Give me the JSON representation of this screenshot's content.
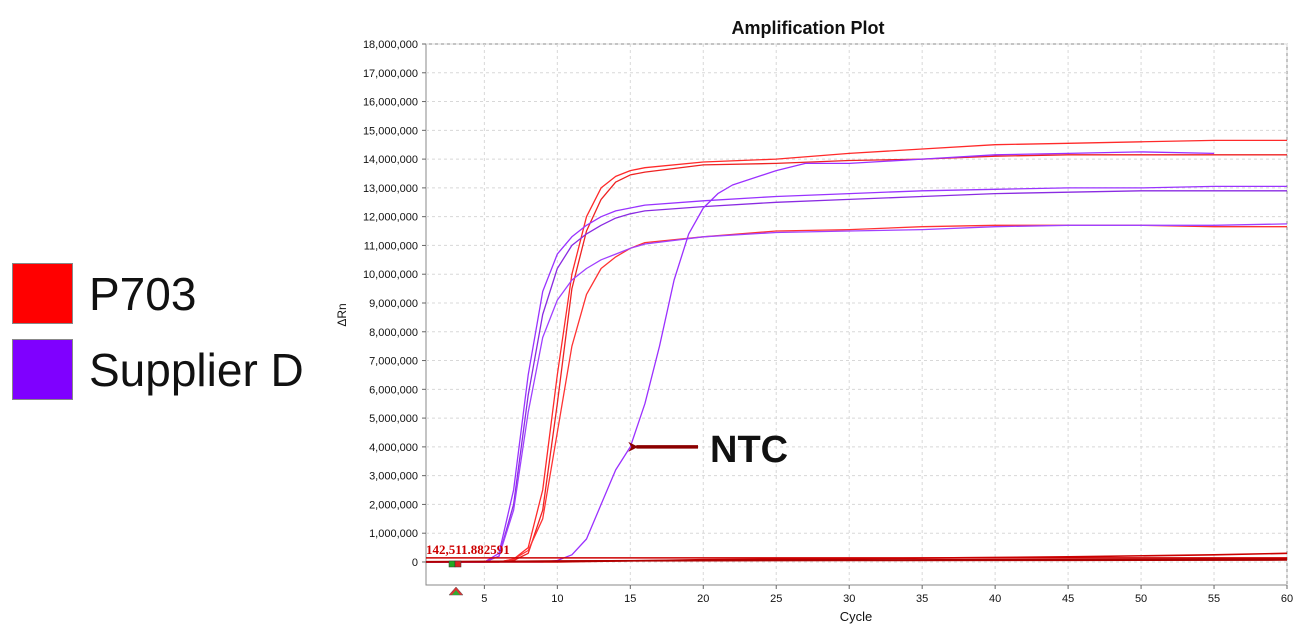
{
  "legend": {
    "items": [
      {
        "label": "P703",
        "color": "#ff0000"
      },
      {
        "label": "Supplier D",
        "color": "#7f00ff"
      }
    ]
  },
  "annotation": {
    "label": "NTC",
    "arrow_color": "#8b0000",
    "points_to": {
      "x": 15,
      "y": 4000000
    }
  },
  "threshold": {
    "label": "142,511.882591",
    "color": "#cc0000"
  },
  "chart_data": {
    "type": "line",
    "title": "Amplification Plot",
    "xlabel": "Cycle",
    "ylabel": "ΔRn",
    "xlim": [
      1,
      60
    ],
    "ylim": [
      -800000,
      18000000
    ],
    "x_ticks": [
      5,
      10,
      15,
      20,
      25,
      30,
      35,
      40,
      45,
      50,
      55,
      60
    ],
    "y_ticks": [
      0,
      1000000,
      2000000,
      3000000,
      4000000,
      5000000,
      6000000,
      7000000,
      8000000,
      9000000,
      10000000,
      11000000,
      12000000,
      13000000,
      14000000,
      15000000,
      16000000,
      17000000,
      18000000
    ],
    "y_tick_labels": [
      "0",
      "1,000,000",
      "2,000,000",
      "3,000,000",
      "4,000,000",
      "5,000,000",
      "6,000,000",
      "7,000,000",
      "8,000,000",
      "9,000,000",
      "10,000,000",
      "11,000,000",
      "12,000,000",
      "13,000,000",
      "14,000,000",
      "15,000,000",
      "16,000,000",
      "17,000,000",
      "18,000,000"
    ],
    "grid": true,
    "threshold_value": 142511.882591,
    "series": [
      {
        "group": "P703",
        "color": "#ff2a2a",
        "points": [
          [
            1,
            0
          ],
          [
            6,
            0
          ],
          [
            7,
            100000
          ],
          [
            8,
            500000
          ],
          [
            9,
            2500000
          ],
          [
            10,
            6500000
          ],
          [
            11,
            10000000
          ],
          [
            12,
            12000000
          ],
          [
            13,
            13000000
          ],
          [
            14,
            13400000
          ],
          [
            15,
            13600000
          ],
          [
            16,
            13700000
          ],
          [
            20,
            13900000
          ],
          [
            25,
            14000000
          ],
          [
            30,
            14200000
          ],
          [
            35,
            14350000
          ],
          [
            40,
            14500000
          ],
          [
            45,
            14550000
          ],
          [
            50,
            14600000
          ],
          [
            55,
            14650000
          ],
          [
            60,
            14650000
          ]
        ]
      },
      {
        "group": "P703",
        "color": "#ee2222",
        "points": [
          [
            1,
            0
          ],
          [
            6,
            0
          ],
          [
            7,
            50000
          ],
          [
            8,
            300000
          ],
          [
            9,
            1800000
          ],
          [
            10,
            5500000
          ],
          [
            11,
            9500000
          ],
          [
            12,
            11500000
          ],
          [
            13,
            12600000
          ],
          [
            14,
            13200000
          ],
          [
            15,
            13450000
          ],
          [
            16,
            13550000
          ],
          [
            20,
            13800000
          ],
          [
            25,
            13850000
          ],
          [
            30,
            13950000
          ],
          [
            35,
            14000000
          ],
          [
            40,
            14100000
          ],
          [
            45,
            14150000
          ],
          [
            50,
            14150000
          ],
          [
            55,
            14150000
          ],
          [
            60,
            14150000
          ]
        ]
      },
      {
        "group": "P703",
        "color": "#ff3333",
        "points": [
          [
            1,
            0
          ],
          [
            6,
            0
          ],
          [
            7,
            100000
          ],
          [
            8,
            400000
          ],
          [
            9,
            1500000
          ],
          [
            10,
            4500000
          ],
          [
            11,
            7500000
          ],
          [
            12,
            9300000
          ],
          [
            13,
            10200000
          ],
          [
            14,
            10600000
          ],
          [
            15,
            10900000
          ],
          [
            16,
            11100000
          ],
          [
            20,
            11300000
          ],
          [
            25,
            11500000
          ],
          [
            30,
            11550000
          ],
          [
            35,
            11650000
          ],
          [
            40,
            11700000
          ],
          [
            45,
            11700000
          ],
          [
            50,
            11700000
          ],
          [
            55,
            11650000
          ],
          [
            60,
            11650000
          ]
        ]
      },
      {
        "group": "Supplier D",
        "color": "#9933ff",
        "points": [
          [
            1,
            0
          ],
          [
            5,
            0
          ],
          [
            6,
            300000
          ],
          [
            7,
            2500000
          ],
          [
            8,
            6500000
          ],
          [
            9,
            9400000
          ],
          [
            10,
            10700000
          ],
          [
            11,
            11300000
          ],
          [
            12,
            11700000
          ],
          [
            13,
            12000000
          ],
          [
            14,
            12200000
          ],
          [
            15,
            12300000
          ],
          [
            16,
            12400000
          ],
          [
            20,
            12550000
          ],
          [
            25,
            12700000
          ],
          [
            30,
            12800000
          ],
          [
            35,
            12900000
          ],
          [
            40,
            12950000
          ],
          [
            45,
            13000000
          ],
          [
            50,
            13000000
          ],
          [
            55,
            13050000
          ],
          [
            60,
            13050000
          ]
        ]
      },
      {
        "group": "Supplier D",
        "color": "#8a2be2",
        "points": [
          [
            1,
            0
          ],
          [
            5,
            0
          ],
          [
            6,
            200000
          ],
          [
            7,
            2000000
          ],
          [
            8,
            5800000
          ],
          [
            9,
            8600000
          ],
          [
            10,
            10200000
          ],
          [
            11,
            11000000
          ],
          [
            12,
            11400000
          ],
          [
            13,
            11700000
          ],
          [
            14,
            11950000
          ],
          [
            15,
            12100000
          ],
          [
            16,
            12200000
          ],
          [
            20,
            12350000
          ],
          [
            25,
            12500000
          ],
          [
            30,
            12600000
          ],
          [
            35,
            12700000
          ],
          [
            40,
            12800000
          ],
          [
            45,
            12850000
          ],
          [
            50,
            12900000
          ],
          [
            55,
            12900000
          ],
          [
            60,
            12900000
          ]
        ]
      },
      {
        "group": "Supplier D",
        "color": "#a040ff",
        "points": [
          [
            1,
            0
          ],
          [
            5,
            0
          ],
          [
            6,
            200000
          ],
          [
            7,
            1800000
          ],
          [
            8,
            5200000
          ],
          [
            9,
            7800000
          ],
          [
            10,
            9100000
          ],
          [
            11,
            9800000
          ],
          [
            12,
            10200000
          ],
          [
            13,
            10500000
          ],
          [
            14,
            10700000
          ],
          [
            15,
            10900000
          ],
          [
            16,
            11050000
          ],
          [
            20,
            11300000
          ],
          [
            25,
            11450000
          ],
          [
            30,
            11500000
          ],
          [
            35,
            11550000
          ],
          [
            40,
            11650000
          ],
          [
            45,
            11700000
          ],
          [
            50,
            11700000
          ],
          [
            55,
            11700000
          ],
          [
            60,
            11750000
          ]
        ]
      },
      {
        "group": "Supplier D",
        "color": "#9b30ff",
        "points": [
          [
            1,
            0
          ],
          [
            9,
            0
          ],
          [
            10,
            50000
          ],
          [
            11,
            250000
          ],
          [
            12,
            800000
          ],
          [
            13,
            2000000
          ],
          [
            14,
            3200000
          ],
          [
            15,
            4000000
          ],
          [
            16,
            5500000
          ],
          [
            17,
            7500000
          ],
          [
            18,
            9800000
          ],
          [
            19,
            11400000
          ],
          [
            20,
            12300000
          ],
          [
            21,
            12800000
          ],
          [
            22,
            13100000
          ],
          [
            25,
            13600000
          ],
          [
            27,
            13850000
          ],
          [
            30,
            13850000
          ],
          [
            35,
            14000000
          ],
          [
            40,
            14150000
          ],
          [
            45,
            14200000
          ],
          [
            50,
            14250000
          ],
          [
            55,
            14200000
          ]
        ]
      },
      {
        "group": "NTC",
        "color": "#cc0000",
        "points": [
          [
            1,
            0
          ],
          [
            10,
            0
          ],
          [
            20,
            80000
          ],
          [
            30,
            110000
          ],
          [
            38,
            150000
          ],
          [
            45,
            180000
          ],
          [
            55,
            250000
          ],
          [
            60,
            300000
          ]
        ]
      },
      {
        "group": "NTC",
        "color": "#aa0000",
        "points": [
          [
            1,
            0
          ],
          [
            10,
            30000
          ],
          [
            20,
            60000
          ],
          [
            40,
            80000
          ],
          [
            60,
            100000
          ]
        ]
      },
      {
        "group": "NTC",
        "color": "#b00000",
        "points": [
          [
            1,
            10000
          ],
          [
            15,
            40000
          ],
          [
            30,
            50000
          ],
          [
            45,
            60000
          ],
          [
            60,
            70000
          ]
        ]
      }
    ]
  }
}
